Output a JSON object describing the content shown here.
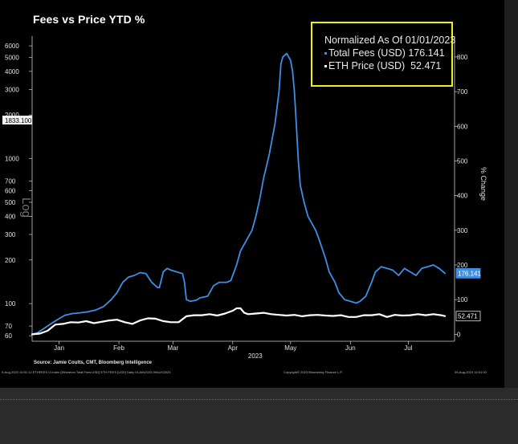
{
  "chart_data": {
    "type": "line",
    "title": "Fees vs Price YTD %",
    "xlabel": "2023",
    "left_axis_label": "Log",
    "right_axis_label": "% Change",
    "left_ticks": [
      "6000",
      "5000",
      "4000",
      "3000",
      "2000",
      "1000",
      "700",
      "600",
      "500",
      "400",
      "300",
      "200",
      "100",
      "70",
      "60"
    ],
    "left_tick_values": [
      6000,
      5000,
      4000,
      3000,
      2000,
      1000,
      700,
      600,
      500,
      400,
      300,
      200,
      100,
      70,
      60
    ],
    "left_ylim": [
      55,
      7000
    ],
    "left_highlight": {
      "label": "1833.100",
      "value": 1833.1
    },
    "right_ticks": [
      "800",
      "700",
      "600",
      "500",
      "400",
      "300",
      "200",
      "100",
      "0"
    ],
    "right_tick_values": [
      800,
      700,
      600,
      500,
      400,
      300,
      200,
      100,
      0
    ],
    "right_ylim": [
      -20,
      860
    ],
    "x_ticks": [
      "Jan",
      "Feb",
      "Mar",
      "Apr",
      "May",
      "Jun",
      "Jul"
    ],
    "x_tick_days": [
      15,
      46,
      74,
      105,
      135,
      166,
      196
    ],
    "x_range_days": [
      1,
      220
    ],
    "legend_title": "Normalized As Of 01/01/2023",
    "series": [
      {
        "name": "Total Fees (USD)",
        "color": "#3d8fe6",
        "last_value": "176.141",
        "x": [
          1,
          4,
          8,
          12,
          15,
          18,
          22,
          26,
          30,
          34,
          38,
          42,
          45,
          48,
          51,
          54,
          57,
          60,
          63,
          66,
          67,
          69,
          71,
          73,
          76,
          79,
          80,
          81,
          83,
          86,
          88,
          92,
          95,
          98,
          102,
          104,
          105,
          107,
          109,
          112,
          115,
          117,
          119,
          121,
          124,
          127,
          129,
          130,
          131,
          133,
          134,
          135,
          136,
          137,
          138,
          139,
          140,
          142,
          144,
          146,
          148,
          150,
          153,
          155,
          158,
          160,
          163,
          166,
          169,
          171,
          174,
          177,
          179,
          182,
          185,
          188,
          191,
          194,
          197,
          200,
          203,
          206,
          209,
          212,
          215
        ],
        "values": [
          0,
          5,
          20,
          35,
          45,
          55,
          60,
          62,
          65,
          70,
          80,
          100,
          120,
          150,
          165,
          170,
          178,
          175,
          150,
          135,
          135,
          180,
          190,
          185,
          180,
          175,
          150,
          100,
          95,
          98,
          105,
          110,
          140,
          150,
          150,
          155,
          170,
          200,
          240,
          270,
          300,
          340,
          390,
          450,
          520,
          610,
          700,
          780,
          800,
          810,
          800,
          790,
          760,
          700,
          600,
          500,
          430,
          380,
          340,
          320,
          300,
          270,
          220,
          180,
          150,
          120,
          100,
          95,
          90,
          95,
          110,
          150,
          180,
          195,
          190,
          185,
          170,
          190,
          180,
          170,
          190,
          195,
          200,
          190,
          176
        ]
      },
      {
        "name": "ETH Price (USD)",
        "color": "#ffffff",
        "last_value": "52.471",
        "x": [
          1,
          5,
          9,
          13,
          17,
          21,
          25,
          29,
          33,
          37,
          41,
          45,
          49,
          53,
          57,
          61,
          65,
          69,
          73,
          77,
          81,
          85,
          89,
          93,
          97,
          101,
          105,
          107,
          109,
          111,
          113,
          117,
          121,
          125,
          129,
          133,
          137,
          141,
          145,
          149,
          153,
          157,
          161,
          165,
          169,
          173,
          177,
          181,
          185,
          189,
          193,
          197,
          201,
          205,
          209,
          213,
          215
        ],
        "values": [
          0,
          2,
          10,
          28,
          30,
          35,
          34,
          38,
          32,
          36,
          40,
          42,
          35,
          30,
          40,
          46,
          45,
          38,
          35,
          35,
          52,
          55,
          55,
          58,
          54,
          60,
          68,
          75,
          75,
          62,
          58,
          60,
          62,
          58,
          56,
          54,
          56,
          52,
          55,
          56,
          54,
          53,
          55,
          50,
          50,
          55,
          55,
          58,
          50,
          56,
          54,
          55,
          58,
          55,
          58,
          55,
          52.471
        ]
      }
    ]
  },
  "footer": {
    "source": "Source: Jamie Coutts, CMT, Bloomberg Intelligence",
    "left_meta": "9-Aug-2023 10:01:12   ETHFEES U Index (Ethereum Total Fees USD) ETH FEES (USD)   Daily 01JAN2023-09AUG2023",
    "copyright": "Copyright© 2023 Bloomberg Finance L.P.",
    "right_meta": "09-Aug-2023 10:01:00"
  },
  "colors": {
    "fees": "#3d8fe6",
    "eth": "#ffffff",
    "legend_border": "#f2f200",
    "background": "#000000"
  }
}
